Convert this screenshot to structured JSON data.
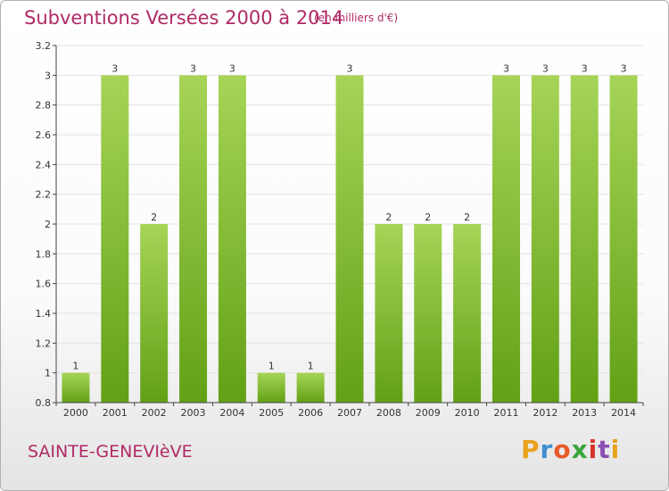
{
  "header": {
    "title": "Subventions Versées 2000 à 2014",
    "unit": "(en milliers d'€)"
  },
  "footer": {
    "commune": "SAINTE-GENEVIèVE",
    "logo_letters": [
      "P",
      "r",
      "o",
      "x",
      "i",
      "t",
      "i"
    ],
    "logo_colors": [
      "#e8a21c",
      "#3f8fd0",
      "#e85a2a",
      "#3aa43a",
      "#d8342a",
      "#8a4fb0",
      "#e8a21c"
    ]
  },
  "colors": {
    "title": "#b02a66",
    "bar_light": "#a6d457",
    "bar_dark": "#62a116",
    "grid": "#e3e3e3",
    "axis": "#444444"
  },
  "chart_data": {
    "type": "bar",
    "title": "Subventions Versées 2000 à 2014",
    "subtitle": "(en milliers d'€)",
    "categories": [
      "2000",
      "2001",
      "2002",
      "2003",
      "2004",
      "2005",
      "2006",
      "2007",
      "2008",
      "2009",
      "2010",
      "2011",
      "2012",
      "2013",
      "2014"
    ],
    "values": [
      1,
      3,
      2,
      3,
      3,
      1,
      1,
      3,
      2,
      2,
      2,
      3,
      3,
      3,
      3
    ],
    "value_labels": [
      "1",
      "3",
      "2",
      "3",
      "3",
      "1",
      "1",
      "3",
      "2",
      "2",
      "2",
      "3",
      "3",
      "3",
      "3"
    ],
    "y_ticks": [
      "0.8",
      "1",
      "1.2",
      "1.4",
      "1.6",
      "1.8",
      "2",
      "2.2",
      "2.4",
      "2.6",
      "2.8",
      "3",
      "3.2"
    ],
    "ylim": [
      0.8,
      3.2
    ],
    "grid": true,
    "xlabel": "",
    "ylabel": ""
  }
}
